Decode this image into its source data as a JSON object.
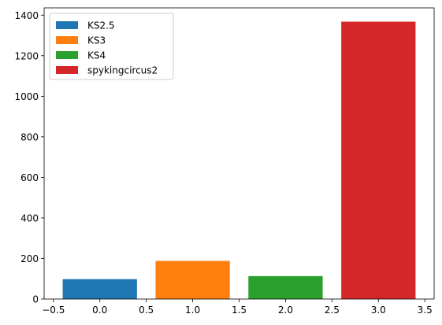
{
  "chart_data": {
    "type": "bar",
    "title": "",
    "xlabel": "",
    "ylabel": "",
    "xlim": [
      -0.6,
      3.6
    ],
    "ylim": [
      0,
      1436
    ],
    "grid": false,
    "legend_position": "top-left",
    "bar_width": 0.8,
    "x_ticks": [
      -0.5,
      0.0,
      0.5,
      1.0,
      1.5,
      2.0,
      2.5,
      3.0,
      3.5
    ],
    "x_tick_labels": [
      "−0.5",
      "0.0",
      "0.5",
      "1.0",
      "1.5",
      "2.0",
      "2.5",
      "3.0",
      "3.5"
    ],
    "y_ticks": [
      0,
      200,
      400,
      600,
      800,
      1000,
      1200,
      1400
    ],
    "y_tick_labels": [
      "0",
      "200",
      "400",
      "600",
      "800",
      "1000",
      "1200",
      "1400"
    ],
    "series": [
      {
        "name": "KS2.5",
        "x": 0,
        "value": 98,
        "color": "#1f77b4"
      },
      {
        "name": "KS3",
        "x": 1,
        "value": 188,
        "color": "#ff7f0e"
      },
      {
        "name": "KS4",
        "x": 2,
        "value": 113,
        "color": "#2ca02c"
      },
      {
        "name": "spykingcircus2",
        "x": 3,
        "value": 1368,
        "color": "#d62728"
      }
    ]
  }
}
